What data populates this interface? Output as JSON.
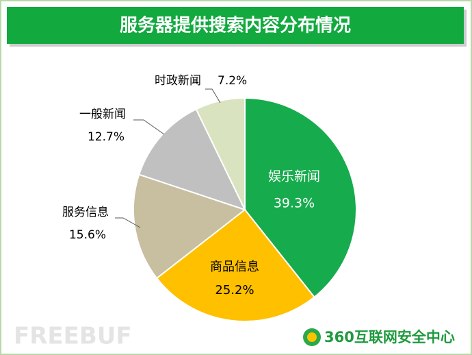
{
  "chart_data": {
    "type": "pie",
    "title": "服务器提供搜索内容分布情况",
    "categories": [
      "娱乐新闻",
      "商品信息",
      "服务信息",
      "一般新闻",
      "时政新闻"
    ],
    "values": [
      39.3,
      25.2,
      15.6,
      12.7,
      7.2
    ],
    "value_labels": [
      "39.3%",
      "25.2%",
      "15.6%",
      "12.7%",
      "7.2%"
    ],
    "colors": [
      "#16ab4c",
      "#ffc000",
      "#c8bea0",
      "#c0c0c0",
      "#d9e3c0"
    ]
  },
  "watermark": "FREEBUF",
  "logo_text": "360互联网安全中心"
}
